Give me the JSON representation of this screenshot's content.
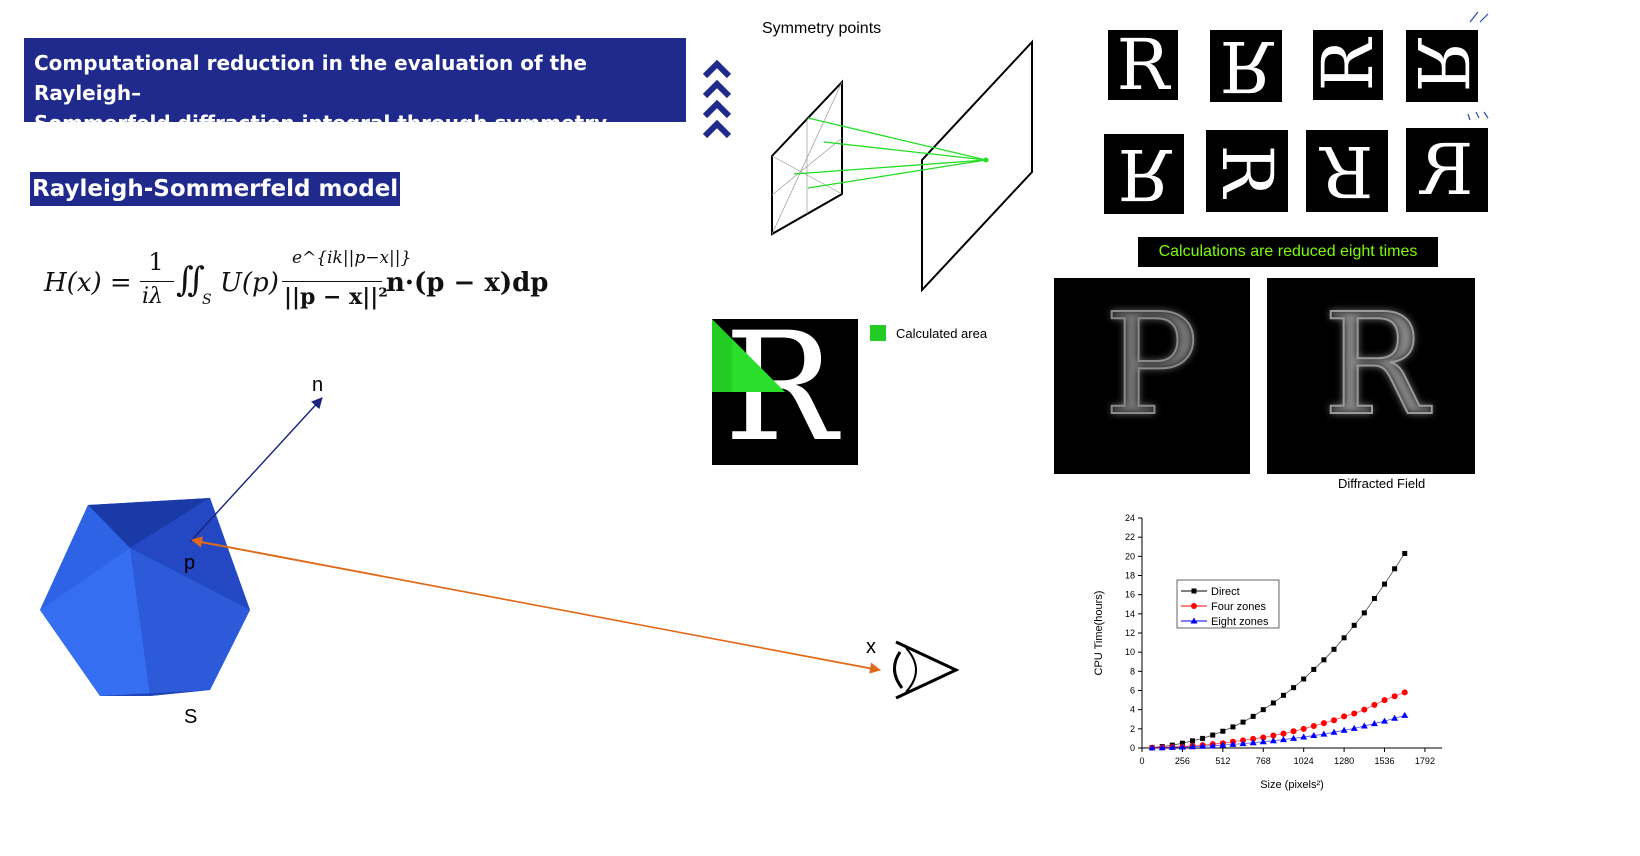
{
  "title": {
    "line1": "Computational reduction in the evaluation of the Rayleigh–",
    "line2": "Sommerfeld diffraction integral through symmetry properties"
  },
  "section_heading": "Rayleigh-Sommerfeld model",
  "equation": {
    "lhs": "H(x) =",
    "frac1_num": "1",
    "frac1_den": "iλ",
    "integral": "∬",
    "integral_sub": "S",
    "integrand": "U(p)",
    "frac2_num": "e^{ik||p−x||}",
    "frac2_den": "||p − x||²",
    "tail": "n·(p − x)dp"
  },
  "geometry": {
    "normal_label": "n",
    "point_label": "p",
    "surface_label": "S",
    "observer_label": "x",
    "colors": {
      "solid": "#2a5de0",
      "normal_arrow": "#1a237e",
      "ray_arrow": "#e06a1a"
    }
  },
  "symmetry": {
    "heading": "Symmetry points",
    "letter": "R",
    "calc_legend": "Calculated area",
    "calc_color": "#22cc22",
    "reduction_banner": "Calculations are reduced eight times",
    "diffracted_label": "Diffracted Field",
    "diffracted_letters": [
      "P",
      "R"
    ]
  },
  "chart_data": {
    "type": "scatter",
    "xlabel": "Size (pixels²)",
    "ylabel": "CPU Time(hours)",
    "xlim": [
      0,
      1900
    ],
    "ylim": [
      0,
      24
    ],
    "xticks": [
      0,
      256,
      512,
      768,
      1024,
      1280,
      1536,
      1792
    ],
    "yticks": [
      0,
      2,
      4,
      6,
      8,
      10,
      12,
      14,
      16,
      18,
      20,
      22,
      24
    ],
    "legend": "upper-left",
    "series": [
      {
        "name": "Direct",
        "marker": "square",
        "color": "#000000",
        "x": [
          64,
          128,
          192,
          256,
          320,
          384,
          448,
          512,
          576,
          640,
          704,
          768,
          832,
          896,
          960,
          1024,
          1088,
          1152,
          1216,
          1280,
          1344,
          1408,
          1472,
          1536,
          1600,
          1664
        ],
        "y": [
          0.05,
          0.15,
          0.3,
          0.5,
          0.75,
          1.0,
          1.35,
          1.75,
          2.2,
          2.7,
          3.3,
          4.0,
          4.7,
          5.5,
          6.3,
          7.2,
          8.2,
          9.2,
          10.3,
          11.5,
          12.8,
          14.1,
          15.6,
          17.1,
          18.7,
          20.3
        ]
      },
      {
        "name": "Four zones",
        "marker": "circle",
        "color": "#ff0000",
        "x": [
          64,
          128,
          192,
          256,
          320,
          384,
          448,
          512,
          576,
          640,
          704,
          768,
          832,
          896,
          960,
          1024,
          1088,
          1152,
          1216,
          1280,
          1344,
          1408,
          1472,
          1536,
          1600,
          1664
        ],
        "y": [
          0.02,
          0.05,
          0.1,
          0.15,
          0.22,
          0.3,
          0.4,
          0.5,
          0.65,
          0.8,
          0.95,
          1.1,
          1.3,
          1.5,
          1.75,
          2.0,
          2.3,
          2.6,
          2.9,
          3.3,
          3.6,
          4.0,
          4.5,
          5.0,
          5.4,
          5.8
        ]
      },
      {
        "name": "Eight zones",
        "marker": "triangle",
        "color": "#0000ff",
        "x": [
          64,
          128,
          192,
          256,
          320,
          384,
          448,
          512,
          576,
          640,
          704,
          768,
          832,
          896,
          960,
          1024,
          1088,
          1152,
          1216,
          1280,
          1344,
          1408,
          1472,
          1536,
          1600,
          1664
        ],
        "y": [
          0.01,
          0.03,
          0.06,
          0.09,
          0.13,
          0.18,
          0.24,
          0.3,
          0.38,
          0.46,
          0.55,
          0.65,
          0.76,
          0.88,
          1.0,
          1.15,
          1.3,
          1.45,
          1.65,
          1.85,
          2.05,
          2.3,
          2.55,
          2.8,
          3.1,
          3.4
        ]
      }
    ]
  }
}
